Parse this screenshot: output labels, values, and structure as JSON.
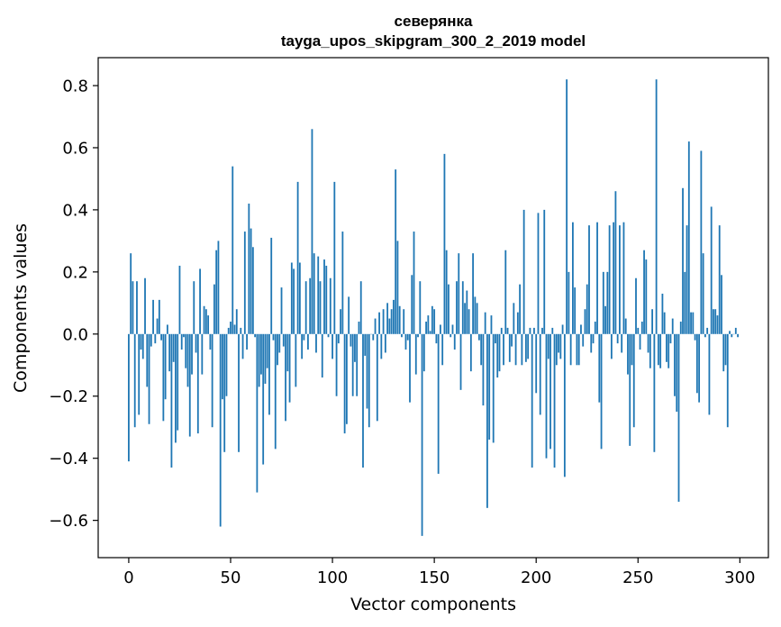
{
  "chart_data": {
    "type": "bar",
    "title": "северянка",
    "subtitle": "tayga_upos_skipgram_300_2_2019 model",
    "xlabel": "Vector components",
    "ylabel": "Components values",
    "xlim": [
      -15,
      314
    ],
    "ylim": [
      -0.72,
      0.89
    ],
    "xticks": [
      0,
      50,
      100,
      150,
      200,
      250,
      300
    ],
    "xtick_labels": [
      "0",
      "50",
      "100",
      "150",
      "200",
      "250",
      "300"
    ],
    "yticks": [
      -0.6,
      -0.4,
      -0.2,
      0.0,
      0.2,
      0.4,
      0.6,
      0.8
    ],
    "ytick_labels": [
      "−0.6",
      "−0.4",
      "−0.2",
      "0.0",
      "0.2",
      "0.4",
      "0.6",
      "0.8"
    ],
    "grid": false,
    "bar_color": "#1f77b4",
    "x": "0..299 (component index)",
    "values": [
      -0.41,
      0.26,
      0.17,
      -0.3,
      0.17,
      -0.26,
      -0.05,
      -0.08,
      0.18,
      -0.17,
      -0.29,
      -0.04,
      0.11,
      -0.03,
      0.05,
      0.11,
      -0.02,
      -0.28,
      -0.21,
      0.03,
      -0.12,
      -0.43,
      -0.09,
      -0.35,
      -0.31,
      0.22,
      -0.05,
      -0.01,
      -0.11,
      -0.17,
      -0.33,
      -0.13,
      0.17,
      -0.06,
      -0.32,
      0.21,
      -0.13,
      0.09,
      0.08,
      0.06,
      -0.05,
      -0.3,
      0.16,
      0.27,
      0.3,
      -0.62,
      -0.21,
      -0.38,
      -0.2,
      0.02,
      0.04,
      0.54,
      0.03,
      0.08,
      -0.38,
      0.02,
      -0.08,
      0.33,
      -0.05,
      0.42,
      0.34,
      0.28,
      -0.01,
      -0.51,
      -0.17,
      -0.13,
      -0.42,
      -0.16,
      -0.11,
      -0.26,
      0.31,
      -0.02,
      -0.37,
      -0.1,
      -0.06,
      0.15,
      -0.04,
      -0.28,
      -0.12,
      -0.22,
      0.23,
      0.21,
      -0.17,
      0.49,
      0.23,
      -0.08,
      -0.02,
      0.17,
      -0.05,
      0.18,
      0.66,
      0.26,
      -0.06,
      0.25,
      0.17,
      -0.14,
      0.24,
      0.22,
      -0.01,
      0.18,
      -0.08,
      0.49,
      -0.2,
      -0.03,
      0.08,
      0.33,
      -0.32,
      -0.29,
      0.12,
      -0.04,
      -0.2,
      -0.09,
      -0.2,
      0.04,
      0.17,
      -0.43,
      -0.07,
      -0.24,
      -0.3,
      0.0,
      -0.02,
      0.05,
      -0.28,
      0.07,
      -0.08,
      0.08,
      -0.06,
      0.1,
      0.05,
      0.08,
      0.11,
      0.53,
      0.3,
      0.09,
      -0.01,
      0.08,
      -0.05,
      -0.02,
      -0.22,
      0.19,
      0.33,
      -0.13,
      -0.01,
      0.17,
      -0.65,
      -0.12,
      0.04,
      0.06,
      0.01,
      0.09,
      0.08,
      -0.03,
      -0.45,
      0.03,
      -0.1,
      0.58,
      0.27,
      0.16,
      -0.01,
      0.03,
      -0.05,
      0.17,
      0.26,
      -0.18,
      0.17,
      0.1,
      0.14,
      0.08,
      -0.12,
      0.26,
      0.12,
      0.1,
      -0.02,
      -0.1,
      -0.23,
      0.07,
      -0.56,
      -0.34,
      0.06,
      -0.35,
      -0.03,
      -0.14,
      -0.12,
      0.02,
      -0.1,
      0.27,
      0.02,
      -0.09,
      -0.04,
      0.1,
      -0.1,
      0.07,
      0.16,
      -0.1,
      0.4,
      -0.09,
      -0.08,
      0.02,
      -0.43,
      0.02,
      -0.19,
      0.39,
      -0.26,
      0.02,
      0.4,
      -0.4,
      -0.08,
      -0.37,
      0.02,
      -0.43,
      -0.1,
      -0.06,
      -0.08,
      0.03,
      -0.46,
      0.82,
      0.2,
      -0.1,
      0.36,
      0.15,
      -0.1,
      -0.1,
      0.03,
      -0.04,
      0.08,
      0.16,
      0.35,
      -0.06,
      -0.03,
      0.04,
      0.36,
      -0.22,
      -0.37,
      0.2,
      0.09,
      0.2,
      0.35,
      -0.08,
      0.36,
      0.46,
      -0.03,
      0.35,
      -0.06,
      0.36,
      0.05,
      -0.13,
      -0.36,
      -0.1,
      -0.3,
      0.18,
      0.02,
      -0.05,
      0.04,
      0.27,
      0.24,
      -0.06,
      -0.11,
      0.08,
      -0.38,
      0.82,
      -0.1,
      -0.11,
      0.13,
      0.07,
      -0.09,
      -0.11,
      -0.03,
      0.05,
      -0.2,
      -0.25,
      -0.54,
      0.04,
      0.47,
      0.2,
      0.35,
      0.62,
      0.07,
      0.07,
      -0.02,
      -0.19,
      -0.22,
      0.59,
      0.26,
      -0.01,
      0.02,
      -0.26,
      0.41,
      0.08,
      0.08,
      0.06,
      0.35,
      0.19,
      -0.12,
      -0.1,
      -0.3,
      0.01,
      -0.01,
      0.0,
      0.02,
      -0.01
    ]
  }
}
